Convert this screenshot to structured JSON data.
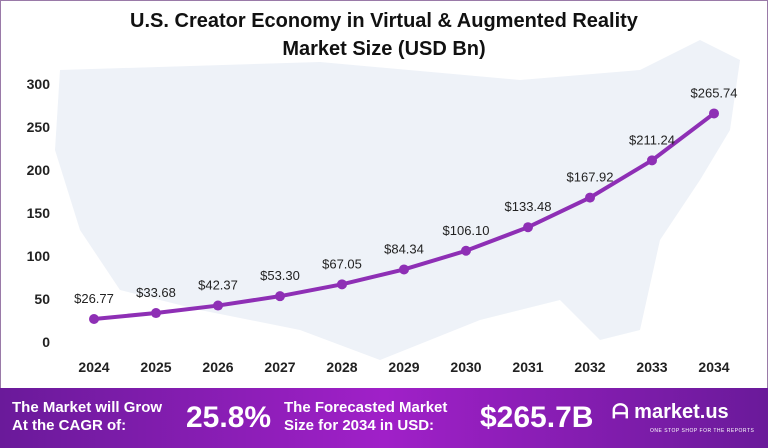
{
  "chart_data": {
    "type": "line",
    "title": "U.S. Creator Economy in Virtual & Augmented Reality",
    "subtitle": "Market Size (USD Bn)",
    "categories": [
      "2024",
      "2025",
      "2026",
      "2027",
      "2028",
      "2029",
      "2030",
      "2031",
      "2032",
      "2033",
      "2034"
    ],
    "values": [
      26.77,
      33.68,
      42.37,
      53.3,
      67.05,
      84.34,
      106.1,
      133.48,
      167.92,
      211.24,
      265.74
    ],
    "data_labels": [
      "$26.77",
      "$33.68",
      "$42.37",
      "$53.30",
      "$67.05",
      "$84.34",
      "$106.10",
      "$133.48",
      "$167.92",
      "$211.24",
      "$265.74"
    ],
    "yticks": [
      "0",
      "50",
      "100",
      "150",
      "200",
      "250",
      "300"
    ],
    "ylim": [
      0,
      300
    ],
    "grid": false,
    "line_color": "#8e2fb5"
  },
  "banner": {
    "cagr_label": "The Market will Grow At the CAGR of:",
    "cagr_value": "25.8%",
    "forecast_label": "The Forecasted Market Size for 2034 in USD:",
    "forecast_value": "$265.7B",
    "logo": "market.us",
    "tagline": "ONE STOP SHOP FOR THE REPORTS"
  }
}
